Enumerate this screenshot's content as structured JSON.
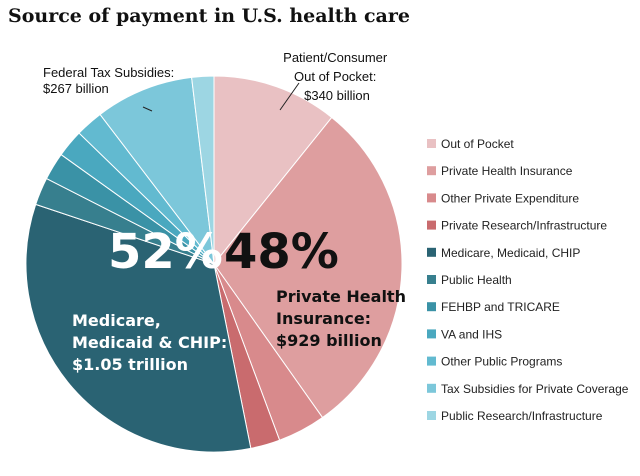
{
  "chart_data": {
    "type": "pie",
    "title": "Source of payment in U.S. health care",
    "slices": [
      {
        "label": "Out of Pocket",
        "value": 340,
        "color": "#e9c1c3"
      },
      {
        "label": "Private Health Insurance",
        "value": 929,
        "color": "#de9e9f"
      },
      {
        "label": "Other Private Expenditure",
        "value": 130,
        "color": "#d88a8c"
      },
      {
        "label": "Private Research/Infrastructure",
        "value": 80,
        "color": "#c96b6e"
      },
      {
        "label": "Medicare, Medicaid, CHIP",
        "value": 1050,
        "color": "#2a6373"
      },
      {
        "label": "Public Health",
        "value": 75,
        "color": "#377f8e"
      },
      {
        "label": "FEHBP and TRICARE",
        "value": 75,
        "color": "#3a92a6"
      },
      {
        "label": "VA and IHS",
        "value": 75,
        "color": "#4aa8bf"
      },
      {
        "label": "Other Public Programs",
        "value": 75,
        "color": "#62bad0"
      },
      {
        "label": "Tax Subsidies for Private Coverage",
        "value": 267,
        "color": "#7cc7da"
      },
      {
        "label": "Public Research/Infrastructure",
        "value": 60,
        "color": "#9dd6e3"
      }
    ],
    "pct_labels": [
      {
        "text": "52%",
        "color": "#ffffff"
      },
      {
        "text": "48%",
        "color": "#111111"
      }
    ],
    "callouts": {
      "federal": [
        "Federal Tax Subsidies:",
        "$267 billion"
      ],
      "patient": [
        "Patient/Consumer",
        "Out of Pocket:",
        "$340 billion"
      ]
    },
    "big_labels": {
      "private": {
        "lines": [
          "Private Health",
          "Insurance:",
          "$929 billion"
        ],
        "color": "#111111"
      },
      "medicare": {
        "lines": [
          "Medicare,",
          "Medicaid & CHIP:",
          "$1.05 trillion"
        ],
        "color": "#ffffff"
      }
    },
    "legend_position": "right"
  }
}
